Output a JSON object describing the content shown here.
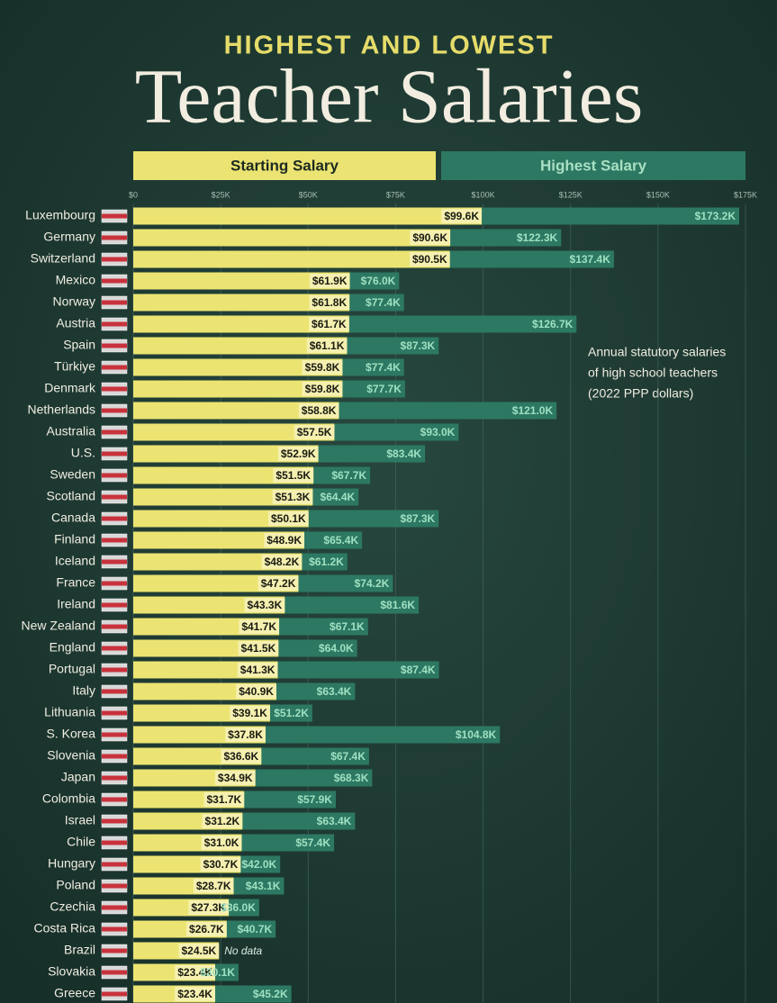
{
  "chart_data": {
    "type": "overlap-bar-horizontal",
    "supertitle": "HIGHEST AND LOWEST",
    "title": "Teacher Salaries",
    "annotation": [
      "Annual statutory salaries",
      "of high school teachers",
      "(2022 PPP dollars)"
    ],
    "categories": [
      "Luxembourg",
      "Germany",
      "Switzerland",
      "Mexico",
      "Norway",
      "Austria",
      "Spain",
      "Türkiye",
      "Denmark",
      "Netherlands",
      "Australia",
      "U.S.",
      "Sweden",
      "Scotland",
      "Canada",
      "Finland",
      "Iceland",
      "France",
      "Ireland",
      "New Zealand",
      "England",
      "Portugal",
      "Italy",
      "Lithuania",
      "S. Korea",
      "Slovenia",
      "Japan",
      "Colombia",
      "Israel",
      "Chile",
      "Hungary",
      "Poland",
      "Czechia",
      "Costa Rica",
      "Brazil",
      "Slovakia",
      "Greece"
    ],
    "series": [
      {
        "name": "Starting Salary",
        "color": "#ebe472",
        "values": [
          99600,
          90600,
          90500,
          61900,
          61800,
          61700,
          61100,
          59800,
          59800,
          58800,
          57500,
          52900,
          51500,
          51300,
          50100,
          48900,
          48200,
          47200,
          43300,
          41700,
          41500,
          41300,
          40900,
          39100,
          37800,
          36600,
          34900,
          31700,
          31200,
          31000,
          30700,
          28700,
          27300,
          26700,
          24500,
          23400,
          23400
        ],
        "value_labels": [
          "$99.6K",
          "$90.6K",
          "$90.5K",
          "$61.9K",
          "$61.8K",
          "$61.7K",
          "$61.1K",
          "$59.8K",
          "$59.8K",
          "$58.8K",
          "$57.5K",
          "$52.9K",
          "$51.5K",
          "$51.3K",
          "$50.1K",
          "$48.9K",
          "$48.2K",
          "$47.2K",
          "$43.3K",
          "$41.7K",
          "$41.5K",
          "$41.3K",
          "$40.9K",
          "$39.1K",
          "$37.8K",
          "$36.6K",
          "$34.9K",
          "$31.7K",
          "$31.2K",
          "$31.0K",
          "$30.7K",
          "$28.7K",
          "$27.3K",
          "$26.7K",
          "$24.5K",
          "$23.4K",
          "$23.4K"
        ]
      },
      {
        "name": "Highest Salary",
        "color": "#2d7862",
        "values": [
          173200,
          122300,
          137400,
          76000,
          77400,
          126700,
          87300,
          77400,
          77700,
          121000,
          93000,
          83400,
          67700,
          64400,
          87300,
          65400,
          61200,
          74200,
          81600,
          67100,
          64000,
          87400,
          63400,
          51200,
          104800,
          67400,
          68300,
          57900,
          63400,
          57400,
          42000,
          43100,
          36000,
          40700,
          null,
          30100,
          45200
        ],
        "value_labels": [
          "$173.2K",
          "$122.3K",
          "$137.4K",
          "$76.0K",
          "$77.4K",
          "$126.7K",
          "$87.3K",
          "$77.4K",
          "$77.7K",
          "$121.0K",
          "$93.0K",
          "$83.4K",
          "$67.7K",
          "$64.4K",
          "$87.3K",
          "$65.4K",
          "$61.2K",
          "$74.2K",
          "$81.6K",
          "$67.1K",
          "$64.0K",
          "$87.4K",
          "$63.4K",
          "$51.2K",
          "$104.8K",
          "$67.4K",
          "$68.3K",
          "$57.9K",
          "$63.4K",
          "$57.4K",
          "$42.0K",
          "$43.1K",
          "$36.0K",
          "$40.7K",
          "No data",
          "$30.1K",
          "$45.2K"
        ]
      }
    ],
    "xlim": [
      0,
      175000
    ],
    "xticks": [
      {
        "value": 0,
        "label": "$0"
      },
      {
        "value": 25000,
        "label": "$25K"
      },
      {
        "value": 50000,
        "label": "$50K"
      },
      {
        "value": 75000,
        "label": "$75K"
      },
      {
        "value": 100000,
        "label": "$100K"
      },
      {
        "value": 125000,
        "label": "$125K"
      },
      {
        "value": 150000,
        "label": "$150K"
      },
      {
        "value": 175000,
        "label": "$175K"
      }
    ],
    "grid": true
  }
}
